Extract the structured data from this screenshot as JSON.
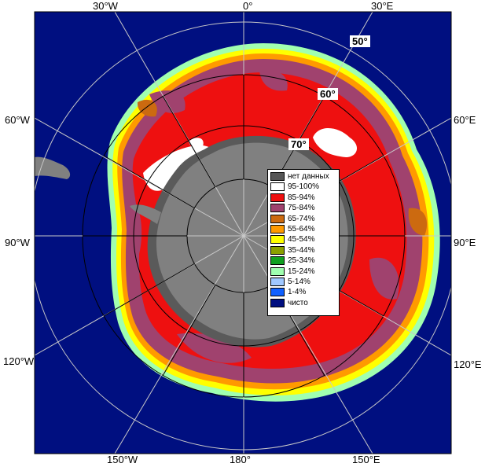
{
  "map": {
    "colors": {
      "ocean": "#000f80",
      "land": "#808080",
      "shelf_dark": "#5a5a5a",
      "ice_95_100": "#ffffff",
      "ice_85_94": "#ee1010",
      "ice_75_84": "#a0426e",
      "ice_65_74": "#cc6a10",
      "ice_55_64": "#ff9a00",
      "ice_45_54": "#ffff00",
      "ice_35_44": "#8aa000",
      "ice_25_34": "#10a020",
      "ice_15_24": "#a0ffb0",
      "ice_5_14": "#a0c8ff",
      "ice_1_4": "#1060ff",
      "clear": "#000f80",
      "grid": "#c8c8c8",
      "grid_black": "#000000"
    },
    "meridian_labels": {
      "top": [
        "30°W",
        "0°",
        "30°E"
      ],
      "left": [
        "60°W",
        "90°W",
        "120°W"
      ],
      "right": [
        "60°E",
        "90°E",
        "120°E"
      ],
      "bottom": [
        "150°W",
        "180°",
        "150°E"
      ]
    },
    "latitude_labels": [
      "50°",
      "60°",
      "70°"
    ]
  },
  "legend": {
    "items": [
      {
        "label": "нет данных",
        "color": "#555555"
      },
      {
        "label": "95-100%",
        "color": "#ffffff"
      },
      {
        "label": "85-94%",
        "color": "#ee1010"
      },
      {
        "label": "75-84%",
        "color": "#a0426e"
      },
      {
        "label": "65-74%",
        "color": "#cc6a10"
      },
      {
        "label": "55-64%",
        "color": "#ff9a00"
      },
      {
        "label": "45-54%",
        "color": "#ffff00"
      },
      {
        "label": "35-44%",
        "color": "#8aa000"
      },
      {
        "label": "25-34%",
        "color": "#10a020"
      },
      {
        "label": "15-24%",
        "color": "#a0ffb0"
      },
      {
        "label": "5-14%",
        "color": "#a0c8ff"
      },
      {
        "label": "1-4%",
        "color": "#1060ff"
      },
      {
        "label": "чисто",
        "color": "#000f80"
      }
    ]
  }
}
